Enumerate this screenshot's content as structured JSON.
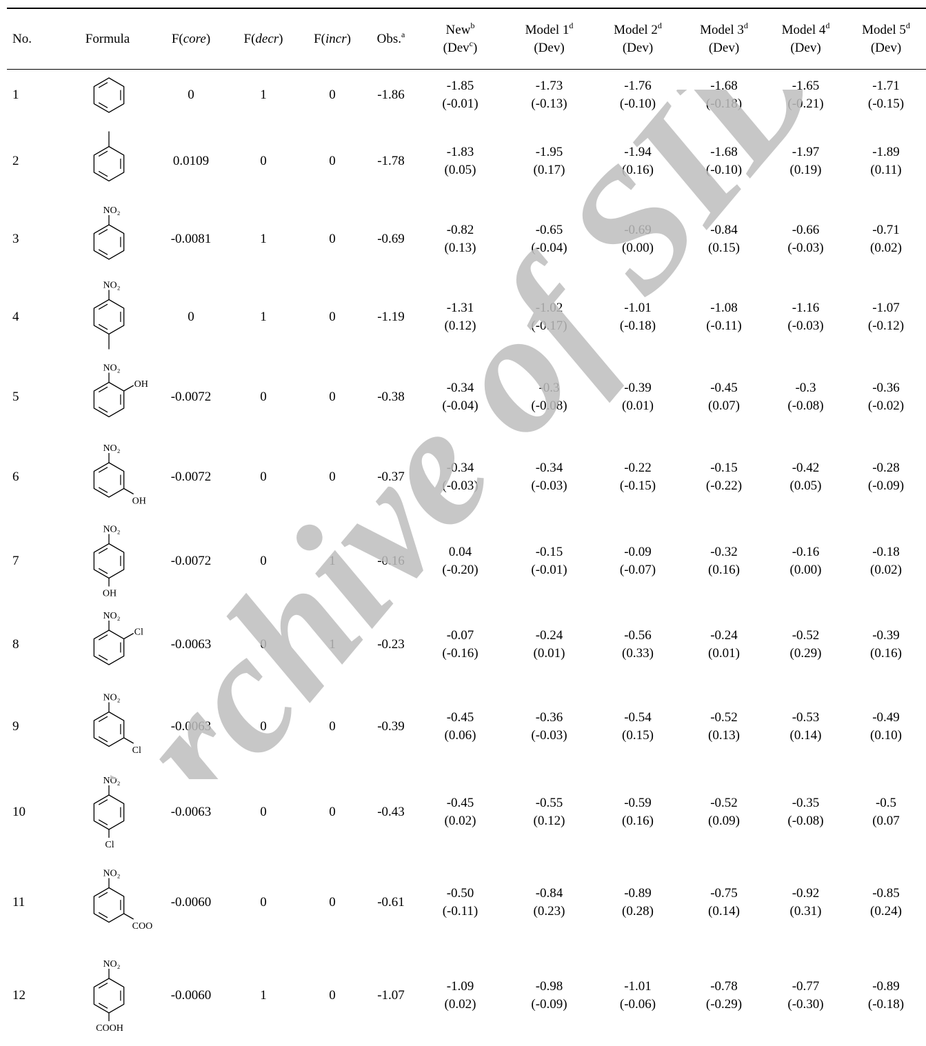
{
  "watermark": "Archive of SID",
  "table": {
    "headers": {
      "no": "No.",
      "formula": "Formula",
      "fcore": {
        "pre": "F(",
        "italic": "core",
        "post": ")"
      },
      "fdecr": {
        "pre": "F(",
        "italic": "decr",
        "post": ")"
      },
      "fincr": {
        "pre": "F(",
        "italic": "incr",
        "post": ")"
      },
      "obs": {
        "text": "Obs.",
        "sup": "a"
      },
      "new": {
        "line1": "New",
        "sup1": "b",
        "line2a": "(Dev",
        "sup2": "c",
        "line2b": ")"
      },
      "models": [
        {
          "line1": "Model 1",
          "sup": "d",
          "line2": "(Dev)"
        },
        {
          "line1": "Model 2",
          "sup": "d",
          "line2": "(Dev)"
        },
        {
          "line1": "Model 3",
          "sup": "d",
          "line2": "(Dev)"
        },
        {
          "line1": "Model 4",
          "sup": "d",
          "line2": "(Dev)"
        },
        {
          "line1": "Model 5",
          "sup": "d",
          "line2": "(Dev)"
        }
      ]
    },
    "rows": [
      {
        "no": "1",
        "structure": "benzene",
        "labels": {},
        "fcore": "0",
        "fdecr": "1",
        "fincr": "0",
        "obs": "-1.86",
        "preds": [
          [
            "-1.85",
            "(-0.01)"
          ],
          [
            "-1.73",
            "(-0.13)"
          ],
          [
            "-1.76",
            "(-0.10)"
          ],
          [
            "-1.68",
            "(-0.18)"
          ],
          [
            "-1.65",
            "(-0.21)"
          ],
          [
            "-1.71",
            "(-0.15)"
          ]
        ]
      },
      {
        "no": "2",
        "structure": "toluene",
        "labels": {},
        "fcore": "0.0109",
        "fdecr": "0",
        "fincr": "0",
        "obs": "-1.78",
        "preds": [
          [
            "-1.83",
            "(0.05)"
          ],
          [
            "-1.95",
            "(0.17)"
          ],
          [
            "-1.94",
            "(0.16)"
          ],
          [
            "-1.68",
            "(-0.10)"
          ],
          [
            "-1.97",
            "(0.19)"
          ],
          [
            "-1.89",
            "(0.11)"
          ]
        ]
      },
      {
        "no": "3",
        "structure": "nitrobenzene",
        "labels": {
          "top": "NO₂"
        },
        "fcore": "-0.0081",
        "fdecr": "1",
        "fincr": "0",
        "obs": "-0.69",
        "preds": [
          [
            "-0.82",
            "(0.13)"
          ],
          [
            "-0.65",
            "(-0.04)"
          ],
          [
            "-0.69",
            "(0.00)"
          ],
          [
            "-0.84",
            "(0.15)"
          ],
          [
            "-0.66",
            "(-0.03)"
          ],
          [
            "-0.71",
            "(0.02)"
          ]
        ]
      },
      {
        "no": "4",
        "structure": "para",
        "labels": {
          "top": "NO₂"
        },
        "fcore": "0",
        "fdecr": "1",
        "fincr": "0",
        "obs": "-1.19",
        "preds": [
          [
            "-1.31",
            "(0.12)"
          ],
          [
            "-1.02",
            "(-0.17)"
          ],
          [
            "-1.01",
            "(-0.18)"
          ],
          [
            "-1.08",
            "(-0.11)"
          ],
          [
            "-1.16",
            "(-0.03)"
          ],
          [
            "-1.07",
            "(-0.12)"
          ]
        ]
      },
      {
        "no": "5",
        "structure": "ortho",
        "labels": {
          "top": "NO₂",
          "sub": "OH"
        },
        "fcore": "-0.0072",
        "fdecr": "0",
        "fincr": "0",
        "obs": "-0.38",
        "preds": [
          [
            "-0.34",
            "(-0.04)"
          ],
          [
            "-0.3",
            "(-0.08)"
          ],
          [
            "-0.39",
            "(0.01)"
          ],
          [
            "-0.45",
            "(0.07)"
          ],
          [
            "-0.3",
            "(-0.08)"
          ],
          [
            "-0.36",
            "(-0.02)"
          ]
        ]
      },
      {
        "no": "6",
        "structure": "meta",
        "labels": {
          "top": "NO₂",
          "sub": "OH"
        },
        "fcore": "-0.0072",
        "fdecr": "0",
        "fincr": "0",
        "obs": "-0.37",
        "preds": [
          [
            "-0.34",
            "(-0.03)"
          ],
          [
            "-0.34",
            "(-0.03)"
          ],
          [
            "-0.22",
            "(-0.15)"
          ],
          [
            "-0.15",
            "(-0.22)"
          ],
          [
            "-0.42",
            "(0.05)"
          ],
          [
            "-0.28",
            "(-0.09)"
          ]
        ]
      },
      {
        "no": "7",
        "structure": "para",
        "labels": {
          "top": "NO₂",
          "sub": "OH"
        },
        "fcore": "-0.0072",
        "fdecr": "0",
        "fincr": "1",
        "obs": "-0.16",
        "preds": [
          [
            "0.04",
            "(-0.20)"
          ],
          [
            "-0.15",
            "(-0.01)"
          ],
          [
            "-0.09",
            "(-0.07)"
          ],
          [
            "-0.32",
            "(0.16)"
          ],
          [
            "-0.16",
            "(0.00)"
          ],
          [
            "-0.18",
            "(0.02)"
          ]
        ]
      },
      {
        "no": "8",
        "structure": "ortho",
        "labels": {
          "top": "NO₂",
          "sub": "Cl"
        },
        "fcore": "-0.0063",
        "fdecr": "0",
        "fincr": "1",
        "obs": "-0.23",
        "preds": [
          [
            "-0.07",
            "(-0.16)"
          ],
          [
            "-0.24",
            "(0.01)"
          ],
          [
            "-0.56",
            "(0.33)"
          ],
          [
            "-0.24",
            "(0.01)"
          ],
          [
            "-0.52",
            "(0.29)"
          ],
          [
            "-0.39",
            "(0.16)"
          ]
        ]
      },
      {
        "no": "9",
        "structure": "meta",
        "labels": {
          "top": "NO₂",
          "sub": "Cl"
        },
        "fcore": "-0.0063",
        "fdecr": "0",
        "fincr": "0",
        "obs": "-0.39",
        "preds": [
          [
            "-0.45",
            "(0.06)"
          ],
          [
            "-0.36",
            "(-0.03)"
          ],
          [
            "-0.54",
            "(0.15)"
          ],
          [
            "-0.52",
            "(0.13)"
          ],
          [
            "-0.53",
            "(0.14)"
          ],
          [
            "-0.49",
            "(0.10)"
          ]
        ]
      },
      {
        "no": "10",
        "structure": "para",
        "labels": {
          "top": "NO₂",
          "sub": "Cl"
        },
        "fcore": "-0.0063",
        "fdecr": "0",
        "fincr": "0",
        "obs": "-0.43",
        "preds": [
          [
            "-0.45",
            "(0.02)"
          ],
          [
            "-0.55",
            "(0.12)"
          ],
          [
            "-0.59",
            "(0.16)"
          ],
          [
            "-0.52",
            "(0.09)"
          ],
          [
            "-0.35",
            "(-0.08)"
          ],
          [
            "-0.5",
            "(0.07"
          ]
        ]
      },
      {
        "no": "11",
        "structure": "meta",
        "labels": {
          "top": "NO₂",
          "sub": "COOH"
        },
        "fcore": "-0.0060",
        "fdecr": "0",
        "fincr": "0",
        "obs": "-0.61",
        "preds": [
          [
            "-0.50",
            "(-0.11)"
          ],
          [
            "-0.84",
            "(0.23)"
          ],
          [
            "-0.89",
            "(0.28)"
          ],
          [
            "-0.75",
            "(0.14)"
          ],
          [
            "-0.92",
            "(0.31)"
          ],
          [
            "-0.85",
            "(0.24)"
          ]
        ]
      },
      {
        "no": "12",
        "structure": "para",
        "labels": {
          "top": "NO₂",
          "sub": "COOH"
        },
        "fcore": "-0.0060",
        "fdecr": "1",
        "fincr": "0",
        "obs": "-1.07",
        "preds": [
          [
            "-1.09",
            "(0.02)"
          ],
          [
            "-0.98",
            "(-0.09)"
          ],
          [
            "-1.01",
            "(-0.06)"
          ],
          [
            "-0.78",
            "(-0.29)"
          ],
          [
            "-0.77",
            "(-0.30)"
          ],
          [
            "-0.89",
            "(-0.18)"
          ]
        ]
      }
    ]
  }
}
